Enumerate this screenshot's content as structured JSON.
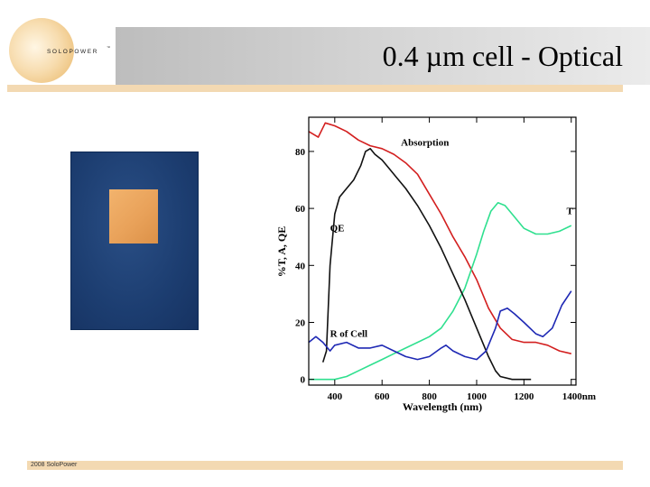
{
  "slide": {
    "title": "0.4 µm cell - Optical",
    "footer": "2008 SoloPower"
  },
  "logo": {
    "text": "SOLOPOWER",
    "trademark": "™"
  },
  "photo": {
    "description": "cell sample photo",
    "background_color": "#1c3d70",
    "cell_color": "#eea560"
  },
  "chart_data": {
    "type": "line",
    "xlabel": "Wavelength (nm)",
    "ylabel": "%T, A, QE",
    "xlim": [
      290,
      1420
    ],
    "ylim": [
      -2,
      92
    ],
    "x_ticks": [
      400,
      600,
      800,
      1000,
      1200,
      1400
    ],
    "x_tick_labels": [
      "400",
      "600",
      "800",
      "1000",
      "1200",
      "1400nm"
    ],
    "y_ticks": [
      0,
      20,
      40,
      60,
      80
    ],
    "y_tick_labels": [
      "0",
      "20",
      "40",
      "60",
      "80"
    ],
    "grid": false,
    "series": [
      {
        "name": "Absorption",
        "color": "#d31f1f",
        "x": [
          290,
          330,
          360,
          400,
          450,
          500,
          550,
          600,
          650,
          700,
          750,
          800,
          850,
          900,
          950,
          1000,
          1050,
          1100,
          1150,
          1200,
          1250,
          1300,
          1350,
          1400
        ],
        "y": [
          87,
          85,
          90,
          89,
          87,
          84,
          82,
          81,
          79,
          76,
          72,
          65,
          58,
          50,
          43,
          35,
          25,
          18,
          14,
          13,
          13,
          12,
          10,
          9
        ]
      },
      {
        "name": "T",
        "color": "#2fe08f",
        "x": [
          290,
          340,
          400,
          450,
          500,
          550,
          600,
          650,
          700,
          750,
          800,
          850,
          900,
          950,
          1000,
          1030,
          1060,
          1090,
          1120,
          1150,
          1200,
          1250,
          1300,
          1350,
          1400
        ],
        "y": [
          0,
          0,
          0,
          1,
          3,
          5,
          7,
          9,
          11,
          13,
          15,
          18,
          24,
          32,
          44,
          52,
          59,
          62,
          61,
          58,
          53,
          51,
          51,
          52,
          54
        ]
      },
      {
        "name": "QE",
        "color": "#111111",
        "x": [
          350,
          365,
          380,
          400,
          420,
          450,
          480,
          510,
          530,
          550,
          570,
          600,
          630,
          660,
          700,
          750,
          800,
          850,
          900,
          950,
          1000,
          1050,
          1080,
          1100,
          1150,
          1200,
          1230
        ],
        "y": [
          6,
          10,
          40,
          58,
          64,
          67,
          70,
          75,
          80,
          81,
          79,
          77,
          74,
          71,
          67,
          61,
          54,
          46,
          37,
          28,
          18,
          8,
          3,
          1,
          0,
          0,
          0
        ]
      },
      {
        "name": "R of Cell",
        "color": "#1e28b4",
        "x": [
          290,
          320,
          350,
          380,
          400,
          450,
          500,
          550,
          600,
          650,
          700,
          750,
          800,
          850,
          870,
          900,
          950,
          1000,
          1040,
          1080,
          1100,
          1130,
          1160,
          1200,
          1250,
          1280,
          1320,
          1360,
          1400
        ],
        "y": [
          13,
          15,
          13,
          10,
          12,
          13,
          11,
          11,
          12,
          10,
          8,
          7,
          8,
          11,
          12,
          10,
          8,
          7,
          10,
          18,
          24,
          25,
          23,
          20,
          16,
          15,
          18,
          26,
          31
        ]
      }
    ],
    "annotations": [
      {
        "text": "Absorption",
        "x": 680,
        "y": 82
      },
      {
        "text": "T",
        "x": 1380,
        "y": 58
      },
      {
        "text": "QE",
        "x": 380,
        "y": 52
      },
      {
        "text": "R of Cell",
        "x": 380,
        "y": 15
      }
    ]
  }
}
